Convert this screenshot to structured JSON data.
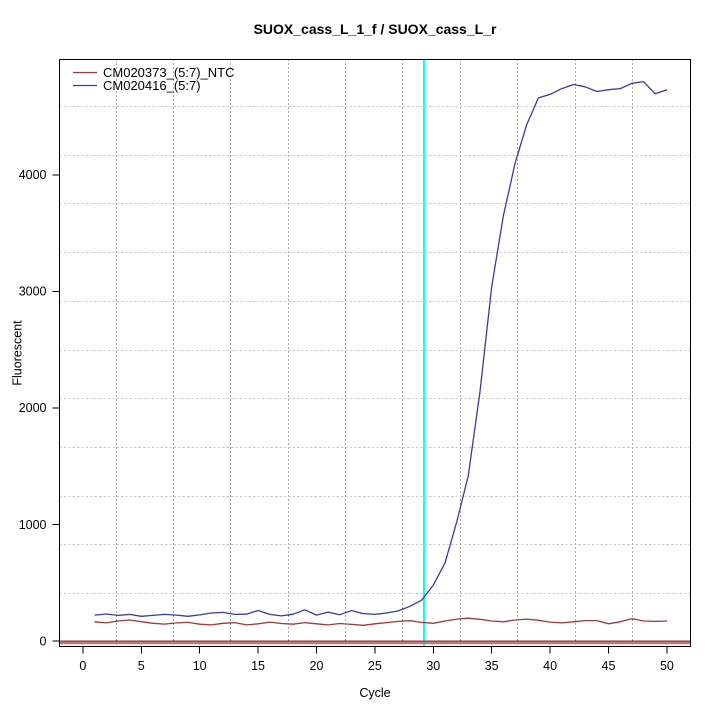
{
  "title": "SUOX_cass_L_1_f / SUOX_cass_L_r",
  "chart_data": {
    "type": "line",
    "title": "SUOX_cass_L_1_f / SUOX_cass_L_r",
    "xlabel": "Cycle",
    "ylabel": "Fluorescent",
    "xlim": [
      0,
      52
    ],
    "ylim": [
      0,
      4990
    ],
    "x_ticks": [
      0,
      5,
      10,
      15,
      20,
      25,
      30,
      35,
      40,
      45,
      50
    ],
    "y_ticks": [
      0,
      1000,
      2000,
      3000,
      4000
    ],
    "grid": {
      "visible": true,
      "h_style": "dashed",
      "v_style": "dotted",
      "h_color": "#c8c8c8",
      "v_color": "#555555"
    },
    "threshold_line": {
      "axis": "x",
      "value": 29.2,
      "color": "#00ffff"
    },
    "zero_line": {
      "axis": "y",
      "value": 0,
      "color": "#9c3a3a"
    },
    "x": [
      1,
      2,
      3,
      4,
      5,
      6,
      7,
      8,
      9,
      10,
      11,
      12,
      13,
      14,
      15,
      16,
      17,
      18,
      19,
      20,
      21,
      22,
      23,
      24,
      25,
      26,
      27,
      28,
      29,
      30,
      31,
      32,
      33,
      34,
      35,
      36,
      37,
      38,
      39,
      40,
      41,
      42,
      43,
      44,
      45,
      46,
      47,
      48,
      49,
      50
    ],
    "series": [
      {
        "name": "CM020373_(5:7)_NTC",
        "color": "#9c3a3a",
        "values": [
          165,
          155,
          172,
          180,
          166,
          152,
          145,
          155,
          160,
          144,
          138,
          152,
          158,
          138,
          148,
          162,
          150,
          144,
          158,
          148,
          138,
          150,
          142,
          135,
          148,
          158,
          168,
          174,
          160,
          152,
          172,
          188,
          196,
          186,
          172,
          165,
          180,
          188,
          178,
          162,
          155,
          165,
          175,
          175,
          148,
          165,
          192,
          172,
          168,
          172
        ]
      },
      {
        "name": "CM020416_(5:7)",
        "color": "#3a3aa2",
        "values": [
          222,
          232,
          220,
          228,
          212,
          220,
          228,
          222,
          212,
          224,
          240,
          245,
          228,
          230,
          262,
          228,
          215,
          230,
          268,
          222,
          248,
          226,
          262,
          235,
          228,
          240,
          258,
          298,
          350,
          480,
          670,
          1020,
          1420,
          2140,
          3040,
          3650,
          4100,
          4430,
          4660,
          4690,
          4740,
          4775,
          4755,
          4715,
          4730,
          4740,
          4785,
          4800,
          4695,
          4730
        ]
      }
    ],
    "legend": {
      "position": "top-left",
      "entries": [
        "CM020373_(5:7)_NTC",
        "CM020416_(5:7)"
      ]
    }
  }
}
